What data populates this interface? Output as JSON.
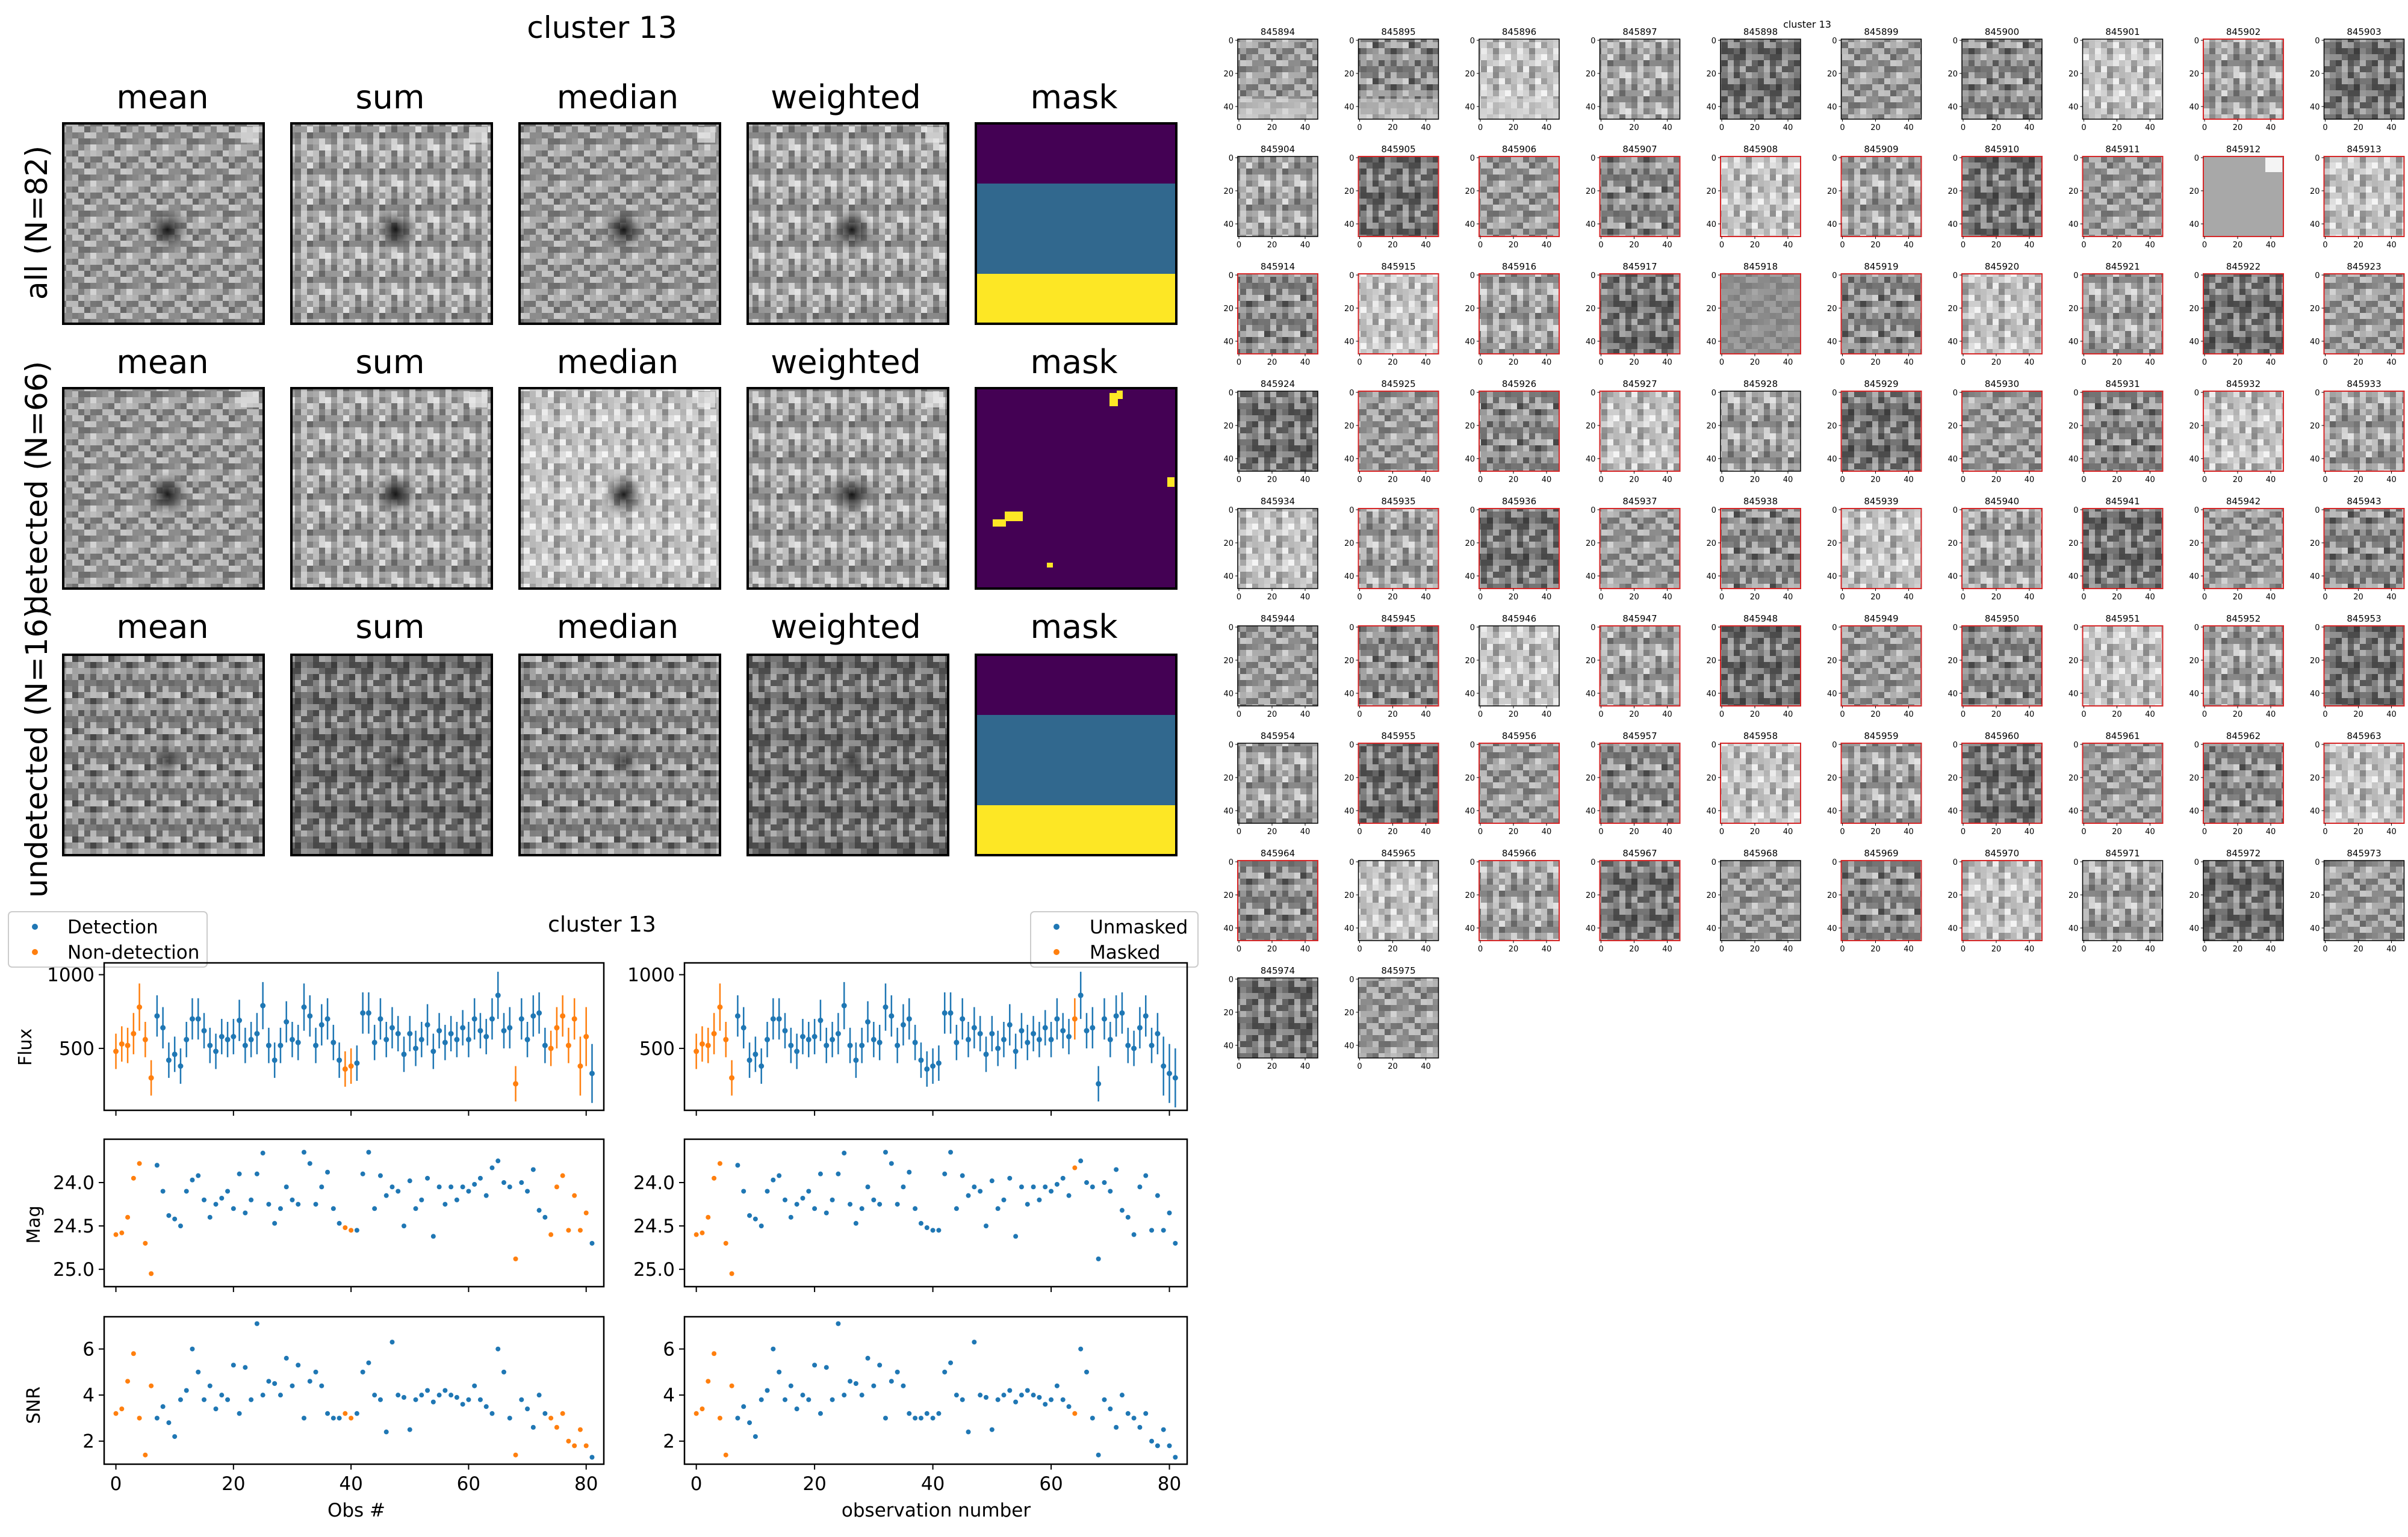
{
  "stack_panel": {
    "title": "cluster 13",
    "column_titles": [
      "mean",
      "sum",
      "median",
      "weighted",
      "mask"
    ],
    "rows": [
      {
        "label": "all (N=82)",
        "median_light": false,
        "faint": false,
        "mask_kind": "bands"
      },
      {
        "label": "detected (N=66)",
        "median_light": true,
        "faint": false,
        "mask_kind": "spots"
      },
      {
        "label": "undetected (N=16)",
        "median_light": false,
        "faint": true,
        "mask_kind": "bands"
      }
    ],
    "mask_colors": [
      "#440154",
      "#31688e",
      "#fde725"
    ]
  },
  "lightcurve_panel": {
    "title": "cluster 13",
    "colors": {
      "blue": "#1f77b4",
      "orange": "#ff7f0e"
    },
    "left_legend": [
      "Detection",
      "Non-detection"
    ],
    "right_legend": [
      "Unmasked",
      "Masked"
    ],
    "left_xlabel": "Obs #",
    "right_xlabel": "observation number",
    "ylabels": [
      "Flux",
      "Mag",
      "SNR"
    ],
    "x_ticks": [
      "0",
      "20",
      "40",
      "60",
      "80"
    ],
    "flux_ticks": [
      "500",
      "1000"
    ],
    "mag_ticks": [
      "24.0",
      "24.5",
      "25.0"
    ],
    "snr_ticks": [
      "2",
      "4",
      "6"
    ]
  },
  "cutout_grid": {
    "title": "cluster 13",
    "tick_labels_x": [
      "0",
      "20",
      "40"
    ],
    "tick_labels_y": [
      "0",
      "20",
      "40"
    ],
    "ids": [
      "845894",
      "845895",
      "845896",
      "845897",
      "845898",
      "845899",
      "845900",
      "845901",
      "845902",
      "845903",
      "845904",
      "845905",
      "845906",
      "845907",
      "845908",
      "845909",
      "845910",
      "845911",
      "845912",
      "845913",
      "845914",
      "845915",
      "845916",
      "845917",
      "845918",
      "845919",
      "845920",
      "845921",
      "845922",
      "845923",
      "845924",
      "845925",
      "845926",
      "845927",
      "845928",
      "845929",
      "845930",
      "845931",
      "845932",
      "845933",
      "845934",
      "845935",
      "845936",
      "845937",
      "845938",
      "845939",
      "845940",
      "845941",
      "845942",
      "845943",
      "845944",
      "845945",
      "845946",
      "845947",
      "845948",
      "845949",
      "845950",
      "845951",
      "845952",
      "845953",
      "845954",
      "845955",
      "845956",
      "845957",
      "845958",
      "845959",
      "845960",
      "845961",
      "845962",
      "845963",
      "845964",
      "845965",
      "845966",
      "845967",
      "845968",
      "845969",
      "845970",
      "845971",
      "845972",
      "845973",
      "845974",
      "845975"
    ],
    "red_border_ids": [
      "845902",
      "845905",
      "845906",
      "845907",
      "845908",
      "845909",
      "845910",
      "845911",
      "845912",
      "845913",
      "845914",
      "845915",
      "845916",
      "845917",
      "845918",
      "845919",
      "845920",
      "845921",
      "845922",
      "845923",
      "845925",
      "845926",
      "845927",
      "845929",
      "845930",
      "845931",
      "845932",
      "845933",
      "845935",
      "845936",
      "845937",
      "845938",
      "845939",
      "845940",
      "845941",
      "845942",
      "845943",
      "845945",
      "845947",
      "845948",
      "845949",
      "845950",
      "845951",
      "845952",
      "845953",
      "845955",
      "845956",
      "845957",
      "845958",
      "845959",
      "845960",
      "845961",
      "845962",
      "845963",
      "845964",
      "845966",
      "845967",
      "845969",
      "845970"
    ]
  },
  "chart_data": [
    {
      "type": "scatter",
      "title": "cluster 13",
      "xlabel": "Obs #",
      "ylabel": "Flux",
      "xlim": [
        -2,
        83
      ],
      "ylim": [
        80,
        1080
      ],
      "series": [
        {
          "name": "Detection"
        },
        {
          "name": "Non-detection"
        }
      ],
      "x": [
        0,
        1,
        2,
        3,
        4,
        5,
        6,
        7,
        8,
        9,
        10,
        11,
        12,
        13,
        14,
        15,
        16,
        17,
        18,
        19,
        20,
        21,
        22,
        23,
        24,
        25,
        26,
        27,
        28,
        29,
        30,
        31,
        32,
        33,
        34,
        35,
        36,
        37,
        38,
        39,
        40,
        41,
        42,
        43,
        44,
        45,
        46,
        47,
        48,
        49,
        50,
        51,
        52,
        53,
        54,
        55,
        56,
        57,
        58,
        59,
        60,
        61,
        62,
        63,
        64,
        65,
        66,
        67,
        68,
        69,
        70,
        71,
        72,
        73,
        74,
        75,
        76,
        77,
        78,
        79,
        80,
        81
      ],
      "flux": [
        480,
        530,
        520,
        600,
        780,
        560,
        300,
        720,
        640,
        420,
        460,
        380,
        560,
        700,
        700,
        620,
        520,
        480,
        580,
        560,
        580,
        690,
        520,
        560,
        600,
        790,
        520,
        420,
        520,
        680,
        560,
        540,
        780,
        720,
        520,
        660,
        700,
        540,
        420,
        360,
        380,
        400,
        740,
        740,
        540,
        700,
        560,
        640,
        600,
        460,
        600,
        500,
        560,
        660,
        480,
        620,
        540,
        600,
        560,
        640,
        560,
        700,
        620,
        580,
        700,
        860,
        620,
        640,
        260,
        700,
        560,
        720,
        740,
        520,
        500,
        640,
        720,
        520,
        700,
        380,
        580,
        330
      ],
      "flux_err": [
        120,
        120,
        120,
        140,
        160,
        120,
        120,
        140,
        140,
        120,
        120,
        120,
        120,
        140,
        140,
        120,
        120,
        120,
        120,
        120,
        120,
        140,
        120,
        120,
        140,
        160,
        120,
        120,
        120,
        140,
        120,
        120,
        160,
        140,
        120,
        140,
        140,
        120,
        120,
        120,
        120,
        120,
        140,
        140,
        120,
        140,
        120,
        140,
        120,
        120,
        120,
        120,
        120,
        140,
        120,
        120,
        120,
        120,
        120,
        120,
        120,
        140,
        120,
        120,
        140,
        160,
        120,
        140,
        120,
        140,
        120,
        140,
        140,
        120,
        120,
        140,
        140,
        120,
        140,
        200,
        200,
        200
      ],
      "mag": [
        24.6,
        24.58,
        24.4,
        23.95,
        23.78,
        24.7,
        25.05,
        23.8,
        24.1,
        24.38,
        24.42,
        24.5,
        24.1,
        23.97,
        23.92,
        24.2,
        24.4,
        24.25,
        24.18,
        24.1,
        24.3,
        23.9,
        24.35,
        24.2,
        23.9,
        23.66,
        24.25,
        24.47,
        24.3,
        24.05,
        24.2,
        24.25,
        23.65,
        23.78,
        24.25,
        24.05,
        23.88,
        24.3,
        24.47,
        24.52,
        24.55,
        24.55,
        23.9,
        23.65,
        24.3,
        23.92,
        24.15,
        24.05,
        24.1,
        24.5,
        23.98,
        24.3,
        24.2,
        23.95,
        24.62,
        24.05,
        24.25,
        24.05,
        24.2,
        24.05,
        24.1,
        24.02,
        23.95,
        24.15,
        23.83,
        23.75,
        24.0,
        24.05,
        24.88,
        24.0,
        24.1,
        23.85,
        24.32,
        24.4,
        24.6,
        24.05,
        23.92,
        24.55,
        24.15,
        24.55,
        24.35,
        24.7
      ],
      "snr": [
        3.2,
        3.4,
        4.6,
        5.8,
        3.0,
        1.4,
        4.4,
        3.0,
        3.5,
        2.8,
        2.2,
        3.8,
        4.2,
        6.0,
        5.0,
        3.8,
        4.4,
        3.4,
        4.0,
        3.8,
        5.3,
        3.2,
        5.2,
        3.8,
        7.1,
        4.0,
        4.6,
        4.5,
        4.0,
        5.6,
        4.4,
        5.3,
        3.0,
        4.6,
        5.0,
        4.4,
        3.2,
        3.0,
        3.0,
        3.2,
        3.0,
        3.2,
        5.0,
        5.4,
        4.0,
        3.8,
        2.4,
        6.3,
        4.0,
        3.9,
        2.5,
        3.8,
        4.0,
        4.2,
        3.7,
        4.0,
        4.2,
        4.0,
        3.9,
        3.6,
        3.8,
        4.4,
        3.8,
        3.5,
        3.2,
        6.0,
        5.0,
        3.0,
        1.4,
        3.8,
        3.4,
        2.6,
        4.0,
        3.2,
        3.0,
        2.6,
        3.2,
        2.0,
        1.8,
        2.5,
        1.8,
        1.3
      ],
      "orange_left": [
        0,
        1,
        2,
        3,
        4,
        5,
        6,
        39,
        40,
        68,
        74,
        75,
        76,
        77,
        78,
        79,
        80
      ],
      "orange_right": [
        0,
        1,
        2,
        3,
        4,
        5,
        6,
        64
      ]
    }
  ]
}
